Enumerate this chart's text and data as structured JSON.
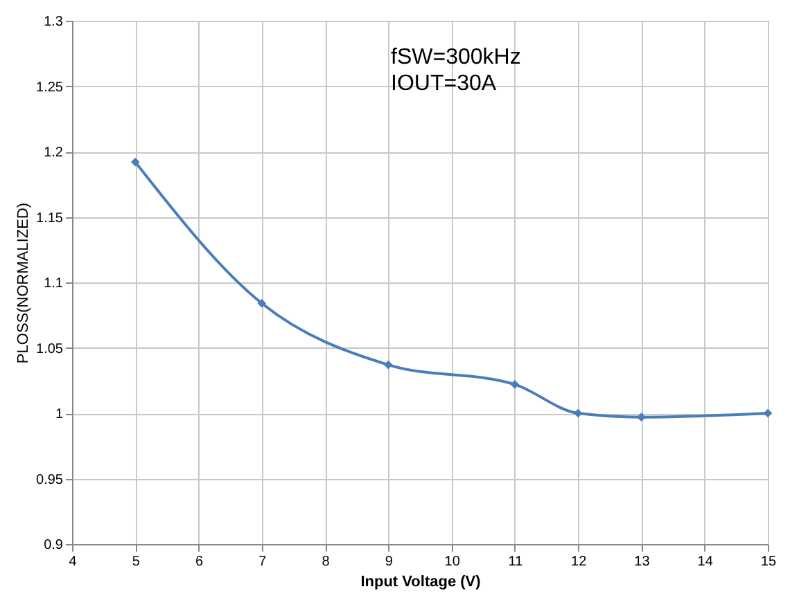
{
  "chart_data": {
    "type": "line",
    "xlabel": "Input Voltage (V)",
    "ylabel": "PLOSS(NORMALIZED)",
    "x": [
      5,
      7,
      9,
      11,
      12,
      13,
      15
    ],
    "series": [
      {
        "color": "#4a7ebb",
        "values": [
          1.192,
          1.084,
          1.037,
          1.022,
          1.0,
          0.997,
          1.0
        ]
      }
    ],
    "xlim": [
      4,
      15
    ],
    "xticks": [
      4,
      5,
      6,
      7,
      8,
      9,
      10,
      11,
      12,
      13,
      14,
      15
    ],
    "ylim": [
      0.9,
      1.3
    ],
    "yticks": [
      0.9,
      0.95,
      1,
      1.05,
      1.1,
      1.15,
      1.2,
      1.25,
      1.3
    ],
    "annotations": [
      "fSW=300kHz",
      "IOUT=30A"
    ],
    "grid": true,
    "marker": "diamond",
    "line_style": "solid",
    "legend": false
  }
}
